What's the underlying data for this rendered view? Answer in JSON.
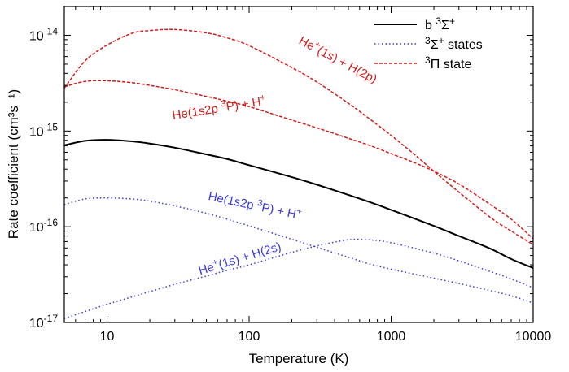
{
  "chart_data": {
    "type": "line",
    "xlabel": "Temperature (K)",
    "ylabel": "Rate coefficient (cm³s⁻¹)",
    "xscale": "log",
    "yscale": "log",
    "xlim": [
      5,
      10000
    ],
    "ylim": [
      1e-17,
      2e-14
    ],
    "xticks": [
      10,
      100,
      1000,
      10000
    ],
    "xtick_labels": [
      "10",
      "100",
      "1000",
      "10000"
    ],
    "yticks": [
      1e-17,
      1e-16,
      1e-15,
      1e-14
    ],
    "ytick_labels": [
      {
        "base": "10",
        "exp": "-17"
      },
      {
        "base": "10",
        "exp": "-16"
      },
      {
        "base": "10",
        "exp": "-15"
      },
      {
        "base": "10",
        "exp": "-14"
      }
    ],
    "grid": false,
    "legend_position": "top-right",
    "legend": [
      {
        "series": "b3",
        "parts": [
          {
            "t": "b "
          },
          {
            "t": "3",
            "sup": true
          },
          {
            "t": "Σ"
          },
          {
            "t": "+",
            "sup": true
          }
        ]
      },
      {
        "series": "sigma",
        "parts": [
          {
            "t": "3",
            "sup": true
          },
          {
            "t": "Σ"
          },
          {
            "t": "+",
            "sup": true
          },
          {
            "t": " states"
          }
        ]
      },
      {
        "series": "pi",
        "parts": [
          {
            "t": "3",
            "sup": true
          },
          {
            "t": "Π state"
          }
        ]
      }
    ],
    "series": [
      {
        "key": "b3",
        "color": "#000000",
        "style": "solid",
        "x": [
          5,
          7,
          10,
          15,
          20,
          30,
          50,
          70,
          100,
          200,
          300,
          500,
          700,
          1000,
          2000,
          3000,
          5000,
          7000,
          10000
        ],
        "y": [
          7.1e-16,
          7.9e-16,
          8.1e-16,
          7.8e-16,
          7.4e-16,
          6.7e-16,
          5.7e-16,
          5.1e-16,
          4.4e-16,
          3.3e-16,
          2.75e-16,
          2.15e-16,
          1.82e-16,
          1.5e-16,
          1.02e-16,
          8e-17,
          5.9e-17,
          4.6e-17,
          3.7e-17
        ]
      },
      {
        "key": "sigma1",
        "color": "#3a3ae0",
        "style": "dotted",
        "x": [
          5,
          7,
          10,
          15,
          20,
          30,
          50,
          70,
          100,
          200,
          300,
          500,
          700,
          1000,
          2000,
          3000,
          5000,
          7000,
          10000
        ],
        "y": [
          1.7e-16,
          1.95e-16,
          2e-16,
          1.95e-16,
          1.85e-16,
          1.65e-16,
          1.38e-16,
          1.2e-16,
          1.02e-16,
          7.4e-17,
          6.1e-17,
          4.8e-17,
          4.1e-17,
          3.6e-17,
          2.9e-17,
          2.55e-17,
          2.15e-17,
          1.9e-17,
          1.6e-17
        ]
      },
      {
        "key": "sigma2",
        "color": "#3a3ae0",
        "style": "dotted",
        "x": [
          5,
          7,
          10,
          15,
          20,
          30,
          50,
          70,
          100,
          200,
          300,
          500,
          700,
          1000,
          2000,
          3000,
          5000,
          7000,
          10000
        ],
        "y": [
          1.1e-17,
          1.3e-17,
          1.55e-17,
          1.85e-17,
          2.1e-17,
          2.5e-17,
          3.05e-17,
          3.5e-17,
          4e-17,
          5.4e-17,
          6.3e-17,
          7.3e-17,
          7.3e-17,
          6.8e-17,
          5.3e-17,
          4.4e-17,
          3.4e-17,
          2.85e-17,
          2.3e-17
        ]
      },
      {
        "key": "pi1",
        "color": "#d01c1c",
        "style": "dashed",
        "x": [
          5,
          7,
          10,
          15,
          20,
          30,
          50,
          70,
          100,
          200,
          300,
          500,
          700,
          1000,
          1500,
          2000,
          3000,
          5000,
          7000,
          10000
        ],
        "y": [
          2.8e-15,
          5.4e-15,
          7.9e-15,
          1.05e-14,
          1.12e-14,
          1.15e-14,
          1.06e-14,
          9.4e-15,
          7.8e-15,
          4.6e-15,
          3.25e-15,
          1.95e-15,
          1.35e-15,
          9e-16,
          5.5e-16,
          3.8e-16,
          2.3e-16,
          1.25e-16,
          9e-17,
          6.5e-17
        ]
      },
      {
        "key": "pi2",
        "color": "#d01c1c",
        "style": "dashed",
        "x": [
          5,
          7,
          10,
          15,
          20,
          30,
          50,
          70,
          100,
          200,
          300,
          500,
          700,
          1000,
          1500,
          2000,
          3000,
          5000,
          7000,
          10000
        ],
        "y": [
          2.9e-15,
          3.3e-15,
          3.35e-15,
          3.2e-15,
          3e-15,
          2.7e-15,
          2.3e-15,
          2.05e-15,
          1.8e-15,
          1.3e-15,
          1.08e-15,
          8.4e-16,
          7.1e-16,
          5.8e-16,
          4.6e-16,
          3.8e-16,
          2.8e-16,
          1.7e-16,
          1.2e-16,
          7.5e-17
        ]
      }
    ],
    "annotations": [
      {
        "series": "pi1",
        "color": "#d01c1c",
        "parts": [
          {
            "t": "He"
          },
          {
            "t": "+",
            "sup": true
          },
          {
            "t": "(1s) + H(2p)"
          }
        ]
      },
      {
        "series": "pi2",
        "color": "#d01c1c",
        "parts": [
          {
            "t": "He(1s2p "
          },
          {
            "t": "3",
            "sup": true
          },
          {
            "t": "P) + H"
          },
          {
            "t": "+",
            "sup": true
          }
        ]
      },
      {
        "series": "sigma1",
        "color": "#3a3ae0",
        "parts": [
          {
            "t": "He(1s2p "
          },
          {
            "t": "3",
            "sup": true
          },
          {
            "t": "P) + H"
          },
          {
            "t": "+",
            "sup": true
          }
        ]
      },
      {
        "series": "sigma2",
        "color": "#3a3ae0",
        "parts": [
          {
            "t": "He"
          },
          {
            "t": "+",
            "sup": true
          },
          {
            "t": "(1s) + H(2s)"
          }
        ]
      }
    ]
  }
}
